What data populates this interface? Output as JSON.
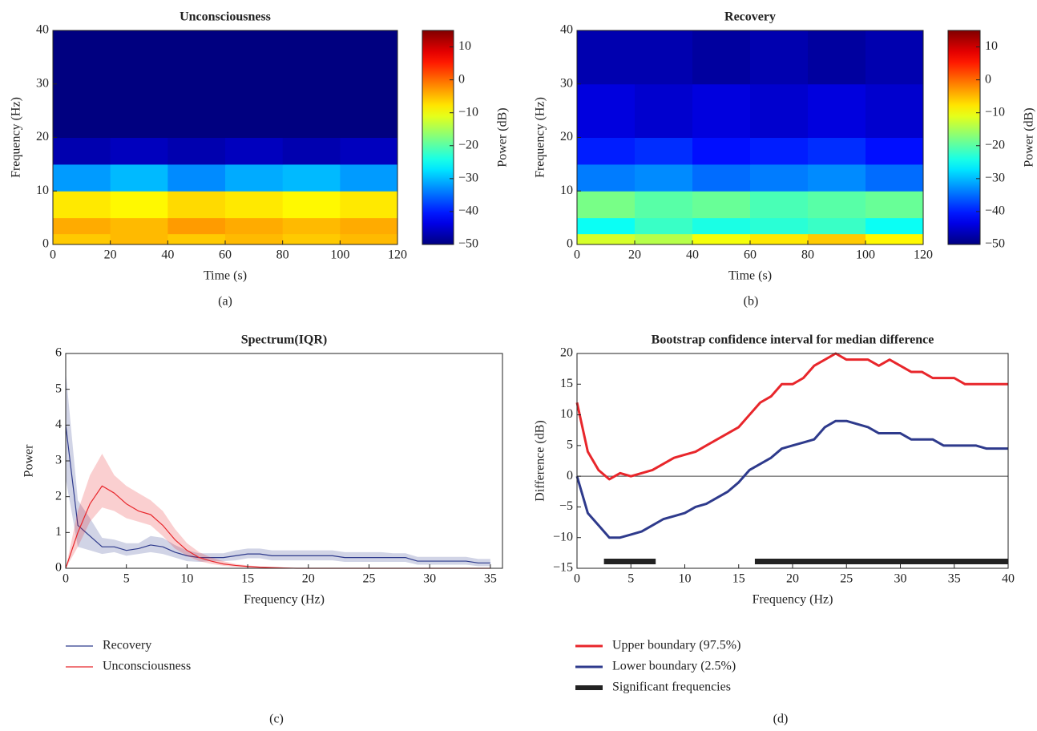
{
  "chart_data": [
    {
      "type": "heatmap",
      "title": "Unconsciousness",
      "panel_label": "(a)",
      "x_label": "Time (s)",
      "y_label": "Frequency (Hz)",
      "xlim": [
        0,
        120
      ],
      "ylim": [
        0,
        40
      ],
      "xticks": [
        0,
        20,
        40,
        60,
        80,
        100,
        120
      ],
      "yticks": [
        0,
        10,
        20,
        30,
        40
      ],
      "x_edges": [
        0,
        20,
        40,
        60,
        80,
        100,
        120
      ],
      "y_edges": [
        0,
        2,
        5,
        10,
        15,
        20,
        30,
        40
      ],
      "z": [
        [
          -6,
          -5,
          -6,
          -5,
          -6,
          -5
        ],
        [
          -4,
          -5,
          -3,
          -4,
          -5,
          -4
        ],
        [
          -8,
          -9,
          -7,
          -8,
          -9,
          -8
        ],
        [
          -32,
          -30,
          -33,
          -31,
          -30,
          -32
        ],
        [
          -47,
          -46,
          -47,
          -46,
          -47,
          -46
        ],
        [
          -50,
          -50,
          -50,
          -50,
          -50,
          -50
        ],
        [
          -50,
          -50,
          -50,
          -50,
          -50,
          -50
        ]
      ],
      "colormap": "jet",
      "clim": [
        -50,
        15
      ],
      "colorbar_label": "Power (dB)",
      "cticks": [
        {
          "value": -50,
          "label": "−50"
        },
        {
          "value": -40,
          "label": "−40"
        },
        {
          "value": -30,
          "label": "−30"
        },
        {
          "value": -20,
          "label": "−20"
        },
        {
          "value": -10,
          "label": "−10"
        },
        0,
        10
      ]
    },
    {
      "type": "heatmap",
      "title": "Recovery",
      "panel_label": "(b)",
      "x_label": "Time (s)",
      "y_label": "Frequency (Hz)",
      "xlim": [
        0,
        120
      ],
      "ylim": [
        0,
        40
      ],
      "xticks": [
        0,
        20,
        40,
        60,
        80,
        100,
        120
      ],
      "yticks": [
        0,
        10,
        20,
        30,
        40
      ],
      "x_edges": [
        0,
        20,
        40,
        60,
        80,
        100,
        120
      ],
      "y_edges": [
        0,
        2,
        5,
        10,
        15,
        20,
        30,
        40
      ],
      "z": [
        [
          -12,
          -14,
          -10,
          -8,
          -6,
          -9
        ],
        [
          -25,
          -22,
          -24,
          -23,
          -22,
          -25
        ],
        [
          -18,
          -20,
          -19,
          -21,
          -20,
          -19
        ],
        [
          -34,
          -33,
          -35,
          -34,
          -33,
          -35
        ],
        [
          -40,
          -39,
          -41,
          -40,
          -39,
          -41
        ],
        [
          -44,
          -45,
          -44,
          -45,
          -44,
          -45
        ],
        [
          -47,
          -47,
          -48,
          -47,
          -48,
          -47
        ]
      ],
      "colormap": "jet",
      "clim": [
        -50,
        15
      ],
      "colorbar_label": "Power (dB)",
      "cticks": [
        {
          "value": -50,
          "label": "−50"
        },
        {
          "value": -40,
          "label": "−40"
        },
        {
          "value": -30,
          "label": "−30"
        },
        {
          "value": -20,
          "label": "−20"
        },
        {
          "value": -10,
          "label": "−10"
        },
        0,
        10
      ]
    },
    {
      "type": "line",
      "title": "Spectrum(IQR)",
      "panel_label": "(c)",
      "x_label": "Frequency (Hz)",
      "y_label": "Power",
      "xlim": [
        0,
        36
      ],
      "ylim": [
        0,
        6
      ],
      "xticks": [
        0,
        5,
        10,
        15,
        20,
        25,
        30,
        35
      ],
      "yticks": [
        0,
        1,
        2,
        3,
        4,
        5,
        6
      ],
      "x": [
        0,
        1,
        2,
        3,
        4,
        5,
        6,
        7,
        8,
        9,
        10,
        11,
        12,
        13,
        14,
        15,
        16,
        17,
        18,
        19,
        20,
        21,
        22,
        23,
        24,
        25,
        26,
        27,
        28,
        29,
        30,
        31,
        32,
        33,
        34,
        35
      ],
      "series": [
        {
          "name": "Recovery",
          "color": "#2e3a8c",
          "values": [
            4.0,
            1.2,
            0.9,
            0.6,
            0.6,
            0.5,
            0.55,
            0.65,
            0.6,
            0.45,
            0.35,
            0.3,
            0.3,
            0.3,
            0.35,
            0.4,
            0.4,
            0.35,
            0.35,
            0.35,
            0.35,
            0.35,
            0.35,
            0.3,
            0.3,
            0.3,
            0.3,
            0.3,
            0.3,
            0.2,
            0.2,
            0.2,
            0.2,
            0.2,
            0.15,
            0.15
          ],
          "lower": [
            2.5,
            0.6,
            0.5,
            0.4,
            0.45,
            0.35,
            0.4,
            0.45,
            0.4,
            0.3,
            0.2,
            0.18,
            0.2,
            0.2,
            0.22,
            0.28,
            0.28,
            0.22,
            0.22,
            0.22,
            0.22,
            0.22,
            0.22,
            0.18,
            0.18,
            0.18,
            0.18,
            0.18,
            0.18,
            0.1,
            0.1,
            0.1,
            0.1,
            0.1,
            0.06,
            0.06
          ],
          "upper": [
            5.5,
            1.9,
            1.4,
            0.85,
            0.8,
            0.7,
            0.7,
            0.9,
            0.85,
            0.65,
            0.5,
            0.42,
            0.42,
            0.42,
            0.5,
            0.55,
            0.55,
            0.5,
            0.5,
            0.5,
            0.5,
            0.5,
            0.5,
            0.45,
            0.45,
            0.45,
            0.45,
            0.42,
            0.42,
            0.32,
            0.32,
            0.32,
            0.32,
            0.32,
            0.26,
            0.26
          ]
        },
        {
          "name": "Unconsciousness",
          "color": "#e8262b",
          "values": [
            0,
            1.0,
            1.8,
            2.3,
            2.1,
            1.8,
            1.6,
            1.5,
            1.2,
            0.8,
            0.5,
            0.3,
            0.2,
            0.12,
            0.08,
            0.05,
            0.03,
            0.02,
            0.01,
            0,
            0,
            0,
            0,
            0,
            0,
            0,
            0,
            0,
            0,
            0,
            0,
            0,
            0,
            0,
            0,
            0
          ],
          "lower": [
            0,
            0.6,
            1.3,
            1.7,
            1.6,
            1.4,
            1.3,
            1.2,
            0.9,
            0.55,
            0.35,
            0.2,
            0.12,
            0.07,
            0.04,
            0.02,
            0.01,
            0.01,
            0,
            0,
            0,
            0,
            0,
            0,
            0,
            0,
            0,
            0,
            0,
            0,
            0,
            0,
            0,
            0,
            0,
            0
          ],
          "upper": [
            0,
            1.6,
            2.6,
            3.2,
            2.6,
            2.3,
            2.1,
            1.9,
            1.6,
            1.1,
            0.7,
            0.45,
            0.3,
            0.2,
            0.12,
            0.08,
            0.05,
            0.03,
            0.02,
            0,
            0,
            0,
            0,
            0,
            0,
            0,
            0,
            0,
            0,
            0,
            0,
            0,
            0,
            0,
            0,
            0
          ]
        }
      ]
    },
    {
      "type": "line",
      "title": "Bootstrap confidence interval for median difference",
      "panel_label": "(d)",
      "x_label": "Frequency (Hz)",
      "y_label": "Difference (dB)",
      "xlim": [
        0,
        40
      ],
      "ylim": [
        -15,
        20
      ],
      "xticks": [
        0,
        5,
        10,
        15,
        20,
        25,
        30,
        35,
        40
      ],
      "yticks": [
        {
          "value": -15,
          "label": "−15"
        },
        {
          "value": -10,
          "label": "−10"
        },
        {
          "value": -5,
          "label": "−5"
        },
        0,
        5,
        10,
        15,
        20
      ],
      "reference_line": 0,
      "x": [
        0,
        1,
        2,
        3,
        4,
        5,
        6,
        7,
        8,
        9,
        10,
        11,
        12,
        13,
        14,
        15,
        16,
        17,
        18,
        19,
        20,
        21,
        22,
        23,
        24,
        25,
        26,
        27,
        28,
        29,
        30,
        31,
        32,
        33,
        34,
        35,
        36,
        37,
        38,
        39,
        40
      ],
      "series": [
        {
          "name": "Upper boundary (97.5%)",
          "color": "#e8262b",
          "values": [
            12,
            4,
            1,
            -0.5,
            0.5,
            0,
            0.5,
            1,
            2,
            3,
            3.5,
            4,
            5,
            6,
            7,
            8,
            10,
            12,
            13,
            15,
            15,
            16,
            18,
            19,
            20,
            19,
            19,
            19,
            18,
            19,
            18,
            17,
            17,
            16,
            16,
            16,
            15,
            15,
            15,
            15,
            15
          ]
        },
        {
          "name": "Lower boundary (2.5%)",
          "color": "#2e3a8c",
          "values": [
            0,
            -6,
            -8,
            -10,
            -10,
            -9.5,
            -9,
            -8,
            -7,
            -6.5,
            -6,
            -5,
            -4.5,
            -3.5,
            -2.5,
            -1,
            1,
            2,
            3,
            4.5,
            5,
            5.5,
            6,
            8,
            9,
            9,
            8.5,
            8,
            7,
            7,
            7,
            6,
            6,
            6,
            5,
            5,
            5,
            5,
            4.5,
            4.5,
            4.5
          ]
        }
      ],
      "significant": {
        "name": "Significant frequencies",
        "color": "#222222",
        "segments": [
          [
            2.5,
            7.3
          ],
          [
            16.5,
            40
          ]
        ]
      }
    }
  ]
}
